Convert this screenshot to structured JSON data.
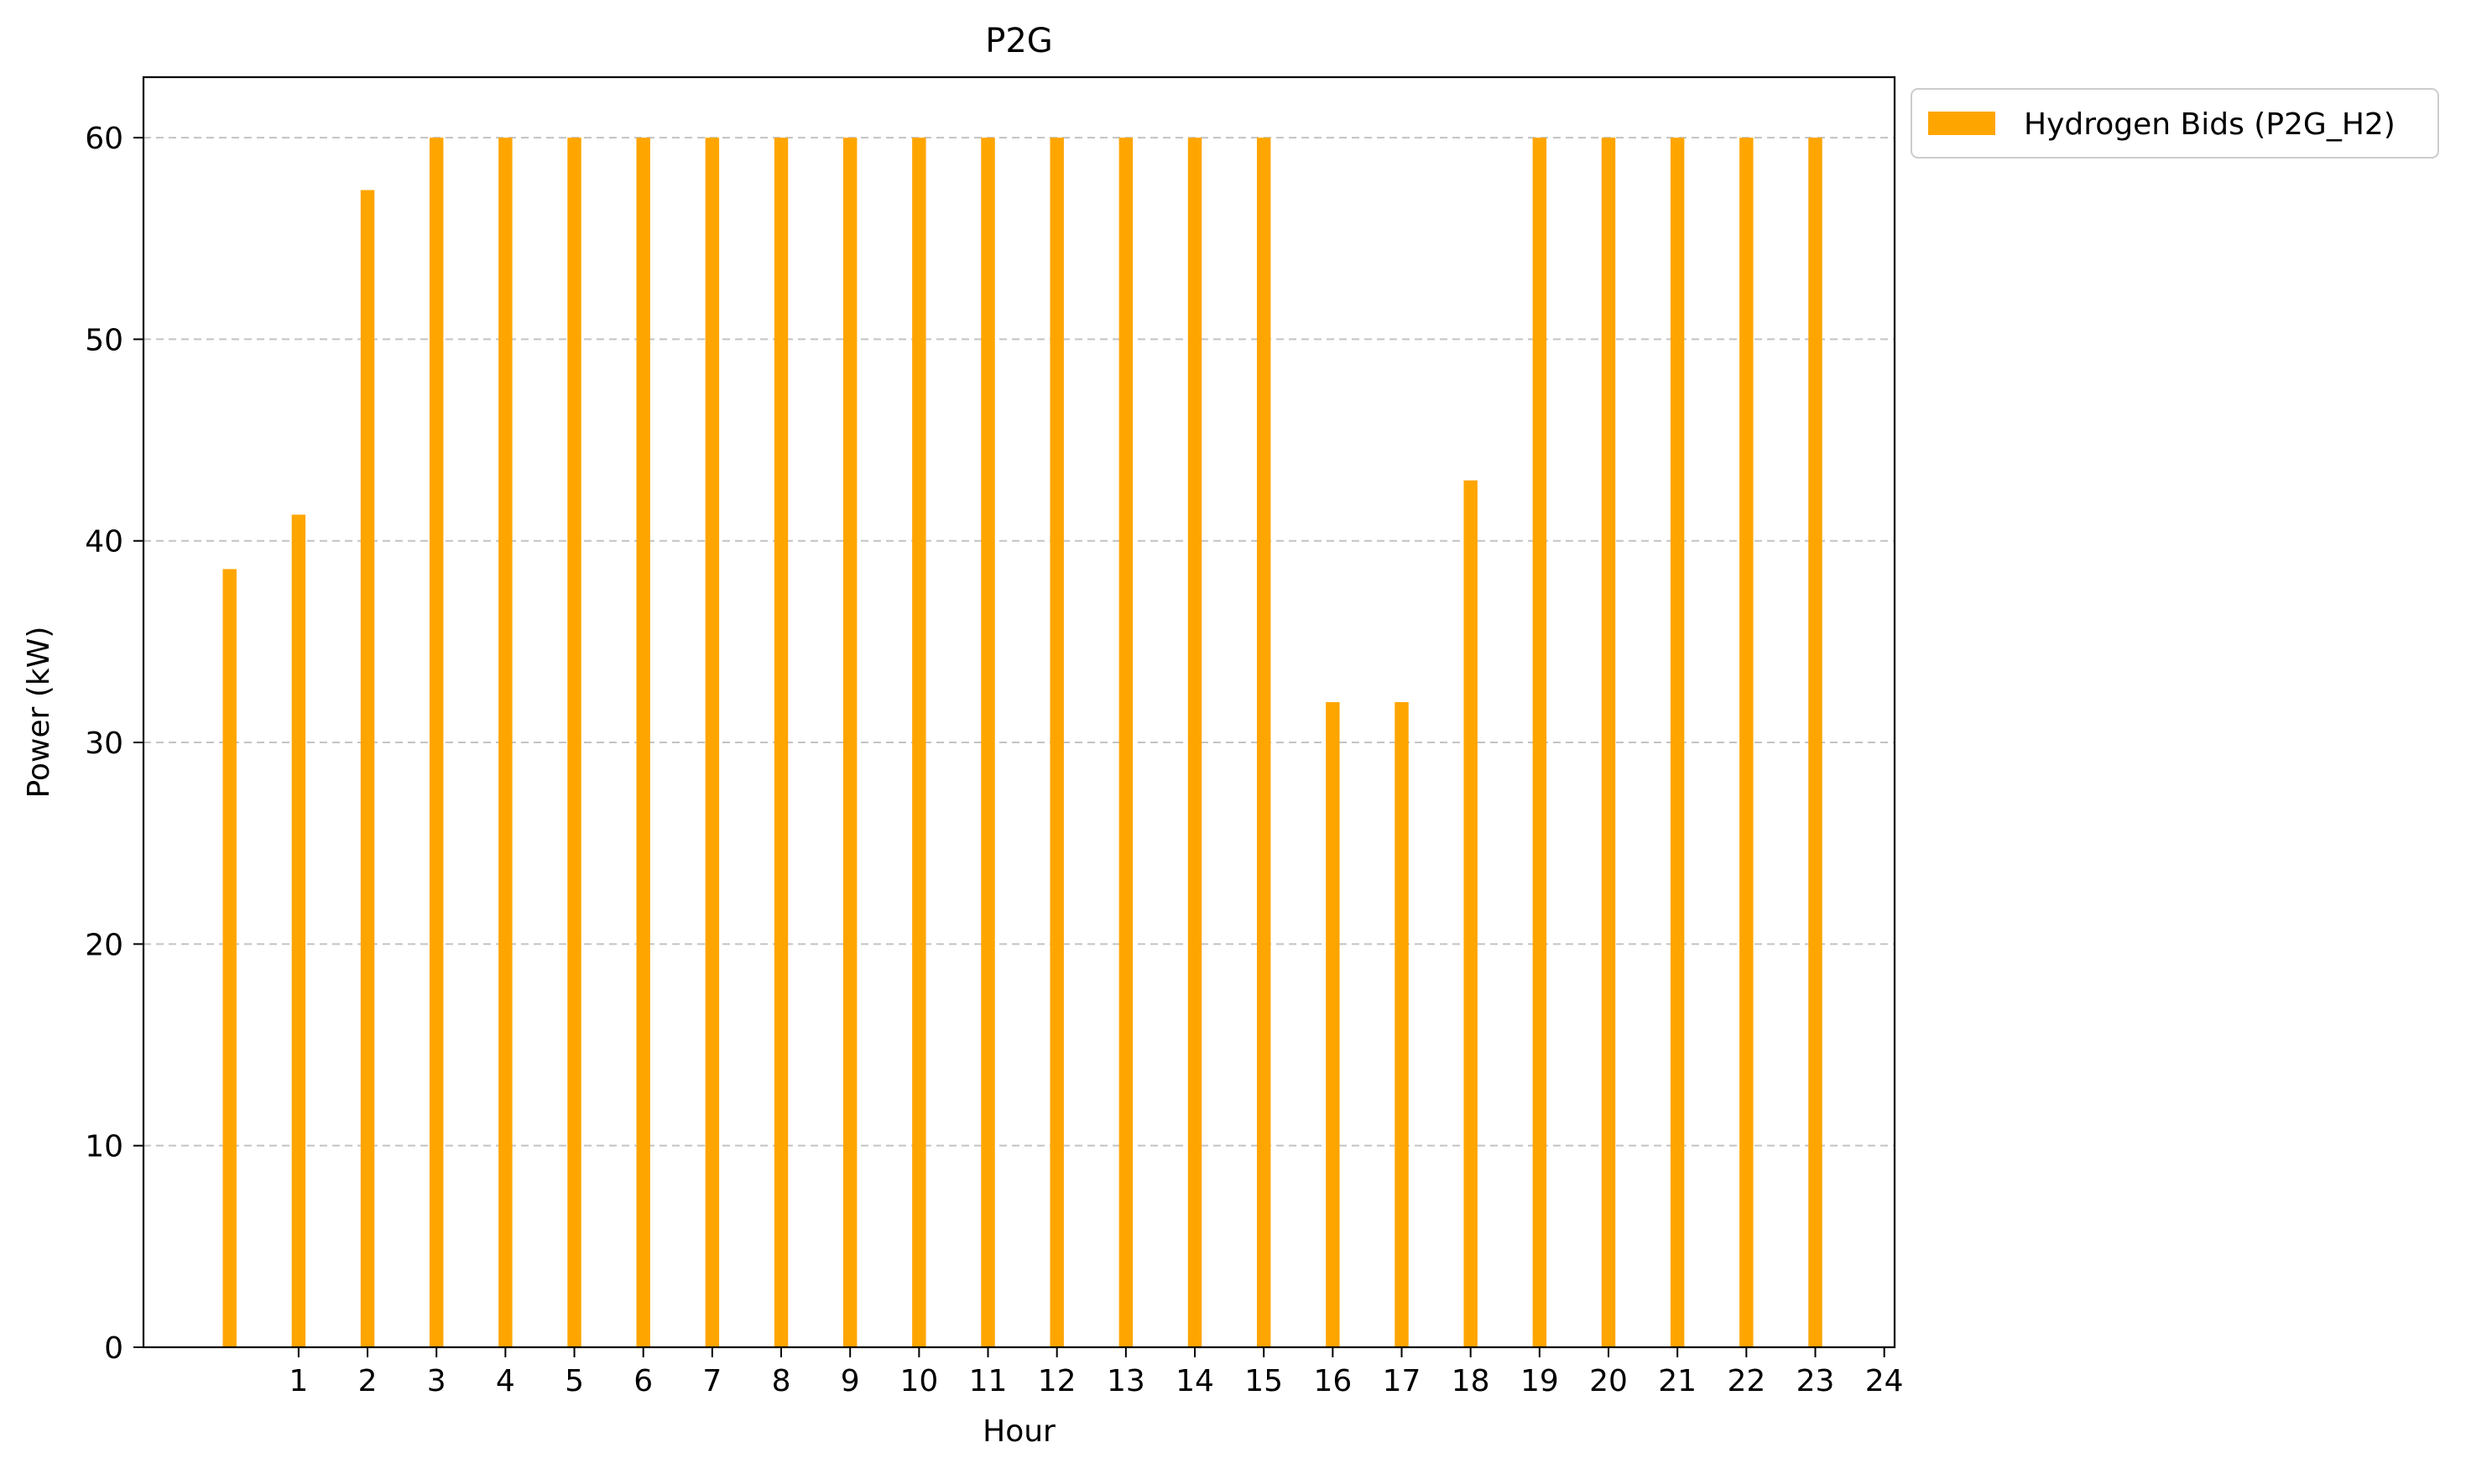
{
  "chart_data": {
    "type": "bar",
    "title": "P2G",
    "xlabel": "Hour",
    "ylabel": "Power (kW)",
    "ylim": [
      0,
      63
    ],
    "xlim": [
      -1.25,
      24.15
    ],
    "grid": "y-dashed",
    "legend_placement": "outside-top-right",
    "x_ticks": [
      1,
      2,
      3,
      4,
      5,
      6,
      7,
      8,
      9,
      10,
      11,
      12,
      13,
      14,
      15,
      16,
      17,
      18,
      19,
      20,
      21,
      22,
      23,
      24
    ],
    "y_ticks": [
      0,
      10,
      20,
      30,
      40,
      50,
      60
    ],
    "x": [
      0,
      1,
      2,
      3,
      4,
      5,
      6,
      7,
      8,
      9,
      10,
      11,
      12,
      13,
      14,
      15,
      16,
      17,
      18,
      19,
      20,
      21,
      22,
      23
    ],
    "series": [
      {
        "name": "Hydrogen Bids (P2G_H2)",
        "color": "#FFA500",
        "values": [
          38.6,
          41.3,
          57.4,
          60,
          60,
          60,
          60,
          60,
          60,
          60,
          60,
          60,
          60,
          60,
          60,
          60,
          32,
          32,
          43,
          60,
          60,
          60,
          60,
          60
        ]
      }
    ]
  }
}
